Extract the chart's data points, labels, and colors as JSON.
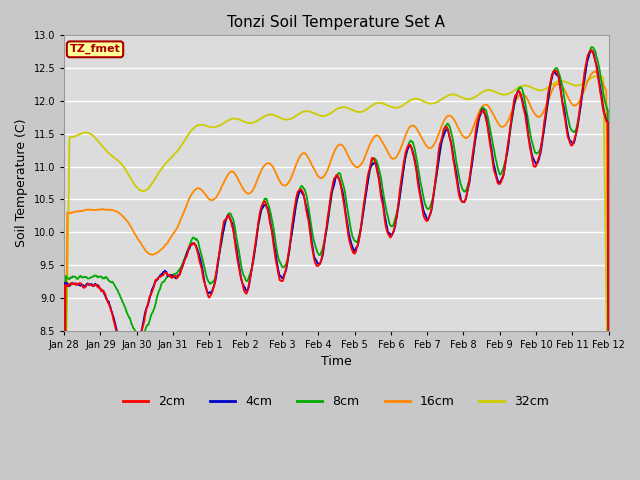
{
  "title": "Tonzi Soil Temperature Set A",
  "xlabel": "Time",
  "ylabel": "Soil Temperature (C)",
  "ylim": [
    8.5,
    13.0
  ],
  "yticks": [
    8.5,
    9.0,
    9.5,
    10.0,
    10.5,
    11.0,
    11.5,
    12.0,
    12.5,
    13.0
  ],
  "colors": {
    "2cm": "#ff0000",
    "4cm": "#0000cc",
    "8cm": "#00aa00",
    "16cm": "#ff8800",
    "32cm": "#cccc00"
  },
  "legend_label": "TZ_fmet",
  "legend_bg": "#ffff99",
  "legend_border": "#aa0000",
  "plot_bg": "#dcdcdc",
  "fig_bg": "#c8c8c8"
}
